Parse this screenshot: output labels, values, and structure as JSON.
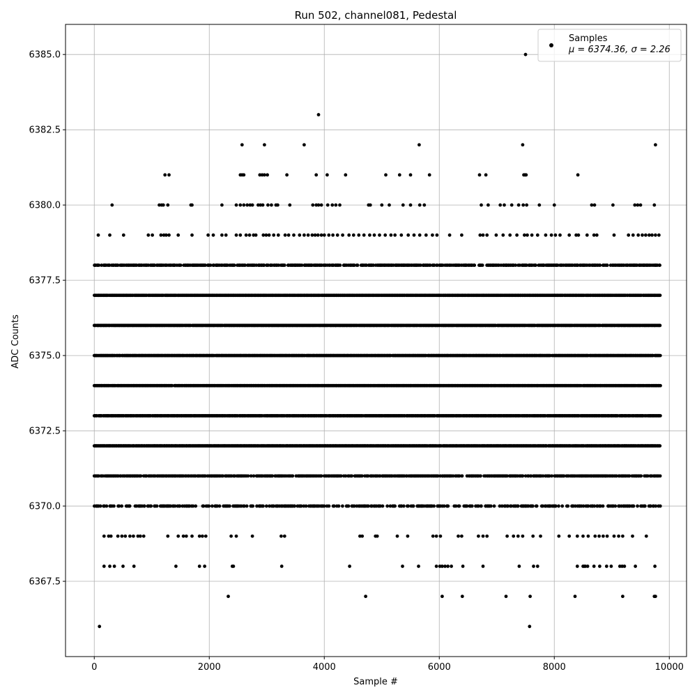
{
  "chart_data": {
    "type": "scatter",
    "title": "Run 502, channel081, Pedestal",
    "xlabel": "Sample #",
    "ylabel": "ADC Counts",
    "xlim": [
      -500,
      10300
    ],
    "ylim": [
      6365.0,
      6386.0
    ],
    "grid": true,
    "marker_color": "#000000",
    "n_samples": 9850,
    "x_ticks": [
      0,
      2000,
      4000,
      6000,
      8000,
      10000
    ],
    "x_tick_labels": [
      "0",
      "2000",
      "4000",
      "6000",
      "8000",
      "10000"
    ],
    "y_ticks": [
      6367.5,
      6370.0,
      6372.5,
      6375.0,
      6377.5,
      6380.0,
      6382.5,
      6385.0
    ],
    "y_tick_labels": [
      "6367.5",
      "6370.0",
      "6372.5",
      "6375.0",
      "6377.5",
      "6380.0",
      "6382.5",
      "6385.0"
    ],
    "legend": {
      "location": "upper right",
      "entries": [
        {
          "label": "Samples",
          "sublabel": "μ = 6374.36, σ = 2.26"
        }
      ]
    },
    "series": [
      {
        "name": "Samples",
        "dense_levels": [
          6370,
          6371,
          6372,
          6373,
          6374,
          6375,
          6376,
          6377,
          6378
        ],
        "sparse_points": [
          {
            "y": 6385,
            "x": [
              7500
            ]
          },
          {
            "y": 6383,
            "x": [
              3900
            ]
          },
          {
            "y": 6382,
            "x": [
              2570,
              2960,
              3650,
              5650,
              7450,
              9760
            ]
          },
          {
            "y": 6381,
            "x": [
              1230,
              1300,
              2540,
              2570,
              2600,
              2880,
              2920,
              2960,
              3010,
              3350,
              3860,
              4050,
              4370,
              5070,
              5310,
              5500,
              5830,
              6700,
              6810,
              7470,
              7490,
              7510,
              8410
            ]
          },
          {
            "y": 6380,
            "x": [
              310,
              1130,
              1170,
              1200,
              1280,
              1680,
              1700,
              2220,
              2470,
              2540,
              2600,
              2660,
              2710,
              2750,
              2850,
              2890,
              2930,
              3020,
              3080,
              3160,
              3190,
              3400,
              3800,
              3860,
              3900,
              3950,
              4060,
              4140,
              4200,
              4270,
              4770,
              4800,
              5000,
              5130,
              5370,
              5500,
              5660,
              5740,
              6730,
              6850,
              7060,
              7130,
              7260,
              7380,
              7460,
              7520,
              7740,
              8000,
              8650,
              8700,
              9020,
              9400,
              9450,
              9500,
              9740
            ]
          },
          {
            "y": 6379,
            "x": [
              70,
              270,
              510,
              940,
              1010,
              1160,
              1210,
              1250,
              1300,
              1460,
              1700,
              1980,
              2070,
              2220,
              2290,
              2470,
              2540,
              2640,
              2700,
              2770,
              2810,
              2940,
              2990,
              3040,
              3120,
              3200,
              3320,
              3380,
              3470,
              3570,
              3650,
              3720,
              3790,
              3840,
              3890,
              3950,
              4000,
              4080,
              4150,
              4230,
              4320,
              4430,
              4510,
              4600,
              4690,
              4790,
              4870,
              4960,
              5060,
              5160,
              5230,
              5340,
              5460,
              5560,
              5660,
              5770,
              5880,
              5960,
              6180,
              6390,
              6710,
              6760,
              6830,
              6990,
              7110,
              7230,
              7350,
              7480,
              7530,
              7610,
              7710,
              7850,
              7950,
              8020,
              8100,
              8260,
              8380,
              8420,
              8570,
              8690,
              8740,
              9040,
              9290,
              9370,
              9460,
              9530,
              9590,
              9650,
              9700,
              9760,
              9820
            ]
          },
          {
            "y": 6369,
            "x": [
              170,
              250,
              290,
              410,
              480,
              540,
              620,
              680,
              760,
              800,
              860,
              1280,
              1460,
              1550,
              1600,
              1700,
              1830,
              1880,
              1940,
              2380,
              2470,
              2750,
              3250,
              3310,
              4620,
              4660,
              4890,
              4920,
              5270,
              5450,
              5890,
              5950,
              6020,
              6330,
              6390,
              6680,
              6760,
              6830,
              7180,
              7290,
              7370,
              7450,
              7630,
              7760,
              8080,
              8260,
              8400,
              8500,
              8590,
              8710,
              8780,
              8850,
              8920,
              9040,
              9120,
              9190,
              9360,
              9600
            ]
          },
          {
            "y": 6368,
            "x": [
              170,
              270,
              350,
              500,
              690,
              1420,
              1830,
              1920,
              2400,
              2420,
              3260,
              4440,
              5360,
              5640,
              5950,
              6010,
              6050,
              6100,
              6150,
              6210,
              6410,
              6760,
              7390,
              7640,
              7710,
              8400,
              8500,
              8520,
              8540,
              8580,
              8690,
              8790,
              8910,
              8990,
              9140,
              9180,
              9220,
              9410,
              9750
            ]
          },
          {
            "y": 6367,
            "x": [
              2330,
              4720,
              6050,
              6400,
              7160,
              7580,
              8360,
              9190,
              9740,
              9760
            ]
          },
          {
            "y": 6366,
            "x": [
              90,
              7570
            ]
          }
        ]
      }
    ]
  }
}
